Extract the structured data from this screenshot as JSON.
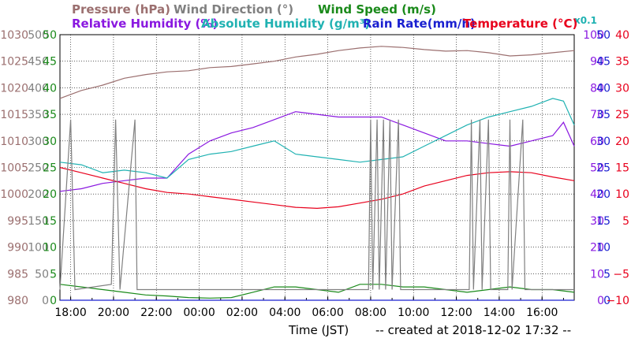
{
  "chart_data": {
    "type": "line",
    "footer": {
      "xlabel": "Time (JST)",
      "created": "-- created at 2018-12-02 17:32 --"
    },
    "x_ticks": [
      "18:00",
      "20:00",
      "22:00",
      "00:00",
      "02:00",
      "04:00",
      "06:00",
      "08:00",
      "10:00",
      "12:00",
      "14:00",
      "16:00"
    ],
    "x_start_hour": 17.5,
    "x_end_hour": 41.5,
    "legend": {
      "row1": [
        {
          "key": "pressure",
          "text": "Pressure (hPa)",
          "color": "#9b6f6f"
        },
        {
          "key": "wind_dir",
          "text": "Wind Direction (°)",
          "color": "#808080"
        },
        {
          "key": "wind_speed",
          "text": "Wind Speed (m/s)",
          "color": "#1a8a1a"
        }
      ],
      "row2": [
        {
          "key": "rh",
          "text": "Relative Humidity (%)",
          "color": "#8a18e0"
        },
        {
          "key": "ah",
          "text": "Absolute Humidity (g/m³)",
          "color": "#20b2b2"
        },
        {
          "key": "ah_scale",
          "text": "x0.1",
          "color": "#20b2b2"
        },
        {
          "key": "rain",
          "text": "Rain Rate(mm/h)",
          "color": "#1a20d0"
        },
        {
          "key": "temp",
          "text": "Temperature (°C)",
          "color": "#e8001c"
        }
      ]
    },
    "axes": [
      {
        "key": "pressure",
        "side": "left",
        "color": "#9b6f6f",
        "ticks": [
          "1030",
          "1025",
          "1020",
          "1015",
          "1010",
          "1005",
          "1000",
          "995",
          "990",
          "985",
          "980"
        ],
        "min": 980,
        "max": 1030
      },
      {
        "key": "wind_dir",
        "side": "left",
        "color": "#808080",
        "ticks": [
          "500",
          "450",
          "400",
          "350",
          "300",
          "250",
          "200",
          "150",
          "100",
          "50",
          "0"
        ],
        "min": 0,
        "max": 500
      },
      {
        "key": "wind_speed",
        "side": "left",
        "color": "#1a8a1a",
        "ticks": [
          "50",
          "45",
          "40",
          "35",
          "30",
          "25",
          "20",
          "15",
          "10",
          "5",
          "0"
        ],
        "min": 0,
        "max": 50
      },
      {
        "key": "rh",
        "side": "right",
        "color": "#8a18e0",
        "ticks": [
          "100",
          "90",
          "80",
          "70",
          "60",
          "50",
          "40",
          "30",
          "20",
          "10",
          "0"
        ],
        "min": 0,
        "max": 100
      },
      {
        "key": "rain",
        "side": "right",
        "color": "#1a20d0",
        "ticks": [
          "50",
          "45",
          "40",
          "35",
          "30",
          "25",
          "20",
          "15",
          "10",
          "5",
          "0"
        ],
        "min": 0,
        "max": 50
      },
      {
        "key": "temp",
        "side": "right",
        "color": "#e8001c",
        "ticks": [
          "40",
          "35",
          "30",
          "25",
          "20",
          "15",
          "10",
          "5",
          "−5",
          "−10"
        ],
        "min": -10,
        "max": 40
      }
    ],
    "series": [
      {
        "name": "Pressure (hPa)",
        "axis": "pressure",
        "color": "#9b6f6f",
        "points": [
          [
            17.5,
            1018.0
          ],
          [
            18.5,
            1019.5
          ],
          [
            19.5,
            1020.5
          ],
          [
            20.5,
            1021.8
          ],
          [
            21.5,
            1022.5
          ],
          [
            22.5,
            1023.0
          ],
          [
            23.5,
            1023.2
          ],
          [
            24.5,
            1023.8
          ],
          [
            25.5,
            1024.0
          ],
          [
            26.5,
            1024.5
          ],
          [
            27.5,
            1025.0
          ],
          [
            28.5,
            1025.8
          ],
          [
            29.5,
            1026.3
          ],
          [
            30.5,
            1027.0
          ],
          [
            31.5,
            1027.5
          ],
          [
            32.5,
            1027.8
          ],
          [
            33.5,
            1027.6
          ],
          [
            34.5,
            1027.2
          ],
          [
            35.5,
            1026.9
          ],
          [
            36.5,
            1027.0
          ],
          [
            37.5,
            1026.6
          ],
          [
            38.5,
            1026.0
          ],
          [
            39.5,
            1026.2
          ],
          [
            40.5,
            1026.6
          ],
          [
            41.5,
            1027.0
          ]
        ]
      },
      {
        "name": "Relative Humidity (%)",
        "axis": "rh",
        "color": "#8a18e0",
        "points": [
          [
            17.5,
            41
          ],
          [
            18.5,
            42
          ],
          [
            19.5,
            44
          ],
          [
            20.5,
            45
          ],
          [
            21.5,
            46
          ],
          [
            22.5,
            46
          ],
          [
            23.5,
            55
          ],
          [
            24.5,
            60
          ],
          [
            25.5,
            63
          ],
          [
            26.5,
            65
          ],
          [
            27.5,
            68
          ],
          [
            28.5,
            71
          ],
          [
            29.5,
            70
          ],
          [
            30.5,
            69
          ],
          [
            31.5,
            69
          ],
          [
            32.5,
            69
          ],
          [
            33.5,
            66
          ],
          [
            34.5,
            63
          ],
          [
            35.5,
            60
          ],
          [
            36.5,
            60
          ],
          [
            37.5,
            59
          ],
          [
            38.5,
            58
          ],
          [
            39.5,
            60
          ],
          [
            40.5,
            62
          ],
          [
            41.0,
            67
          ],
          [
            41.5,
            58
          ]
        ]
      },
      {
        "name": "Absolute Humidity (g/m³)",
        "axis": "rh",
        "color": "#20b2b2",
        "points": [
          [
            17.5,
            52
          ],
          [
            18.5,
            51
          ],
          [
            19.5,
            48
          ],
          [
            20.5,
            49
          ],
          [
            21.5,
            48
          ],
          [
            22.5,
            46
          ],
          [
            23.5,
            53
          ],
          [
            24.5,
            55
          ],
          [
            25.5,
            56
          ],
          [
            26.5,
            58
          ],
          [
            27.5,
            60
          ],
          [
            28.5,
            55
          ],
          [
            29.5,
            54
          ],
          [
            30.5,
            53
          ],
          [
            31.5,
            52
          ],
          [
            32.5,
            53
          ],
          [
            33.5,
            54
          ],
          [
            34.5,
            58
          ],
          [
            35.5,
            62
          ],
          [
            36.5,
            66
          ],
          [
            37.5,
            69
          ],
          [
            38.5,
            71
          ],
          [
            39.5,
            73
          ],
          [
            40.5,
            76
          ],
          [
            41.0,
            75
          ],
          [
            41.5,
            66
          ]
        ]
      },
      {
        "name": "Temperature (°C)",
        "axis": "temp",
        "color": "#e8001c",
        "points": [
          [
            17.5,
            15.0
          ],
          [
            18.5,
            14.0
          ],
          [
            19.5,
            13.0
          ],
          [
            20.5,
            12.0
          ],
          [
            21.5,
            11.0
          ],
          [
            22.5,
            10.3
          ],
          [
            23.5,
            10.0
          ],
          [
            24.5,
            9.5
          ],
          [
            25.5,
            9.0
          ],
          [
            26.5,
            8.5
          ],
          [
            27.5,
            8.0
          ],
          [
            28.5,
            7.5
          ],
          [
            29.5,
            7.3
          ],
          [
            30.5,
            7.6
          ],
          [
            31.5,
            8.3
          ],
          [
            32.5,
            9.0
          ],
          [
            33.5,
            10.0
          ],
          [
            34.5,
            11.5
          ],
          [
            35.5,
            12.5
          ],
          [
            36.5,
            13.5
          ],
          [
            37.5,
            14.0
          ],
          [
            38.5,
            14.2
          ],
          [
            39.5,
            14.0
          ],
          [
            40.5,
            13.2
          ],
          [
            41.5,
            12.5
          ]
        ]
      },
      {
        "name": "Wind Speed (m/s)",
        "axis": "wind_speed",
        "color": "#1a8a1a",
        "points": [
          [
            17.5,
            3
          ],
          [
            18.5,
            2.5
          ],
          [
            19.5,
            2
          ],
          [
            20.5,
            1.5
          ],
          [
            21.5,
            1
          ],
          [
            22.5,
            0.8
          ],
          [
            23.5,
            0.5
          ],
          [
            24.5,
            0.4
          ],
          [
            25.5,
            0.5
          ],
          [
            26.5,
            1.5
          ],
          [
            27.5,
            2.5
          ],
          [
            28.5,
            2.5
          ],
          [
            29.5,
            2
          ],
          [
            30.5,
            1.5
          ],
          [
            31.5,
            3
          ],
          [
            32.5,
            3
          ],
          [
            33.5,
            2.5
          ],
          [
            34.5,
            2.5
          ],
          [
            35.5,
            2
          ],
          [
            36.5,
            1.5
          ],
          [
            37.5,
            2
          ],
          [
            38.5,
            2.5
          ],
          [
            39.5,
            2
          ],
          [
            40.5,
            2
          ],
          [
            41.5,
            1.5
          ]
        ]
      },
      {
        "name": "Wind Direction (°)",
        "axis": "wind_dir",
        "color": "#808080",
        "points": [
          [
            17.5,
            20
          ],
          [
            18.0,
            340
          ],
          [
            18.2,
            20
          ],
          [
            19.9,
            30
          ],
          [
            20.1,
            340
          ],
          [
            20.3,
            20
          ],
          [
            21.0,
            340
          ],
          [
            21.1,
            20
          ],
          [
            31.9,
            20
          ],
          [
            32.0,
            340
          ],
          [
            32.1,
            20
          ],
          [
            32.3,
            340
          ],
          [
            32.4,
            20
          ],
          [
            32.6,
            340
          ],
          [
            32.7,
            20
          ],
          [
            32.9,
            340
          ],
          [
            33.0,
            20
          ],
          [
            33.3,
            340
          ],
          [
            33.4,
            20
          ],
          [
            36.6,
            20
          ],
          [
            36.7,
            340
          ],
          [
            36.8,
            20
          ],
          [
            37.1,
            340
          ],
          [
            37.2,
            20
          ],
          [
            37.5,
            340
          ],
          [
            37.6,
            20
          ],
          [
            38.4,
            20
          ],
          [
            38.5,
            340
          ],
          [
            38.6,
            20
          ],
          [
            39.1,
            340
          ],
          [
            39.2,
            20
          ],
          [
            41.5,
            20
          ]
        ]
      },
      {
        "name": "Rain Rate(mm/h)",
        "axis": "rain",
        "color": "#1a20d0",
        "points": [
          [
            17.5,
            0
          ],
          [
            41.5,
            0
          ]
        ]
      }
    ]
  }
}
